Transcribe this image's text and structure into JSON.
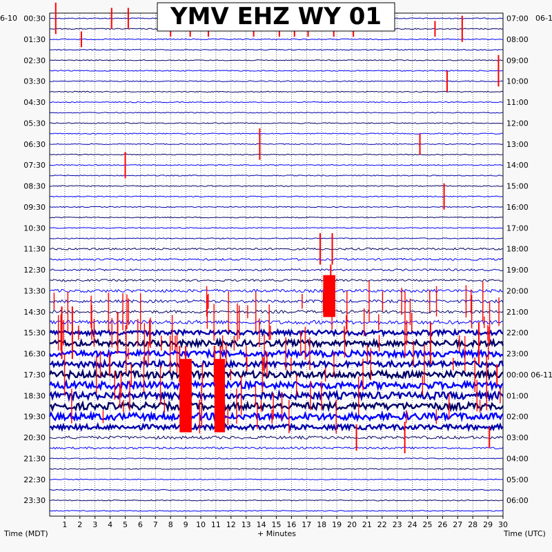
{
  "chart_data": {
    "type": "line",
    "title": "YMV EHZ WY 01",
    "xlabel": "+ Minutes",
    "left_axis_label": "Time (MDT)",
    "right_axis_label": "Time (UTC)",
    "left_date": "6-10",
    "right_date": "06-1",
    "mid_date_label": "06-11",
    "xlim": [
      0,
      30
    ],
    "x_ticks": [
      "1",
      "2",
      "3",
      "4",
      "5",
      "6",
      "7",
      "8",
      "9",
      "10",
      "11",
      "12",
      "13",
      "14",
      "15",
      "16",
      "17",
      "18",
      "19",
      "20",
      "21",
      "22",
      "23",
      "24",
      "25",
      "26",
      "27",
      "28",
      "29",
      "30"
    ],
    "left_ticks": [
      "00:30",
      "01:30",
      "02:30",
      "03:30",
      "04:30",
      "05:30",
      "06:30",
      "07:30",
      "08:30",
      "09:30",
      "10:30",
      "11:30",
      "12:30",
      "13:30",
      "14:30",
      "15:30",
      "16:30",
      "17:30",
      "18:30",
      "19:30",
      "20:30",
      "21:30",
      "22:30",
      "23:30"
    ],
    "right_ticks": [
      "07:00",
      "08:00",
      "09:00",
      "10:00",
      "11:00",
      "12:00",
      "13:00",
      "14:00",
      "15:00",
      "16:00",
      "17:00",
      "18:00",
      "19:00",
      "20:00",
      "21:00",
      "22:00",
      "23:00",
      "00:00",
      "01:00",
      "02:00",
      "03:00",
      "04:00",
      "05:00",
      "06:00"
    ],
    "series": [
      {
        "color": "#0000aa",
        "line_amplitude": [
          1,
          1,
          1,
          1,
          1,
          1,
          1,
          1,
          1,
          1,
          1,
          1,
          1,
          1,
          1,
          1,
          1,
          1,
          1,
          1,
          1,
          1,
          1,
          1,
          1,
          1,
          1,
          1,
          1,
          1,
          1,
          1,
          1,
          1,
          1,
          1,
          1,
          1,
          1,
          1,
          1,
          1,
          1,
          1,
          1,
          1,
          1,
          1,
          1,
          1,
          1,
          1
        ]
      },
      {
        "color": "#000066"
      },
      {
        "color": "#0000ff"
      },
      {
        "color": "#ff0000"
      }
    ],
    "rows": 48,
    "row_amplitude": [
      1,
      1,
      1,
      1,
      1,
      1,
      1,
      1,
      1,
      1,
      1,
      1,
      1,
      1,
      1,
      1,
      1,
      1,
      1,
      1,
      1,
      1,
      2,
      2,
      2,
      2,
      3,
      3,
      3,
      4,
      5,
      6,
      6,
      6,
      7,
      7,
      7,
      7,
      7,
      5,
      3,
      2,
      1,
      1,
      1,
      1,
      1,
      1
    ],
    "events": [
      {
        "minute": 0.4,
        "row": 0,
        "height": 3.0
      },
      {
        "minute": 2.1,
        "row": 2,
        "height": 1.5
      },
      {
        "minute": 4.1,
        "row": 0,
        "height": 2.0
      },
      {
        "minute": 5.2,
        "row": 0,
        "height": 2.0
      },
      {
        "minute": 8.0,
        "row": 1,
        "height": 1.5
      },
      {
        "minute": 9.3,
        "row": 1,
        "height": 1.5
      },
      {
        "minute": 10.5,
        "row": 1,
        "height": 1.5
      },
      {
        "minute": 13.5,
        "row": 1,
        "height": 1.5
      },
      {
        "minute": 15.2,
        "row": 1,
        "height": 1.5
      },
      {
        "minute": 16.2,
        "row": 1,
        "height": 1.5
      },
      {
        "minute": 17.1,
        "row": 1,
        "height": 1.5
      },
      {
        "minute": 18.8,
        "row": 1,
        "height": 1.5
      },
      {
        "minute": 20.1,
        "row": 1,
        "height": 1.5
      },
      {
        "minute": 25.5,
        "row": 1,
        "height": 1.5
      },
      {
        "minute": 27.3,
        "row": 1,
        "height": 2.5
      },
      {
        "minute": 26.3,
        "row": 6,
        "height": 2.0
      },
      {
        "minute": 29.7,
        "row": 5,
        "height": 3.0
      },
      {
        "minute": 24.5,
        "row": 12,
        "height": 2.0
      },
      {
        "minute": 13.9,
        "row": 12,
        "height": 3.0
      },
      {
        "minute": 5.0,
        "row": 14,
        "height": 2.5
      },
      {
        "minute": 26.1,
        "row": 17,
        "height": 2.5
      },
      {
        "minute": 17.9,
        "row": 22,
        "height": 3.0
      },
      {
        "minute": 18.7,
        "row": 22,
        "height": 3.0
      },
      {
        "minute": 0.8,
        "row": 30,
        "height": 5.0
      },
      {
        "minute": 1.5,
        "row": 30,
        "height": 5.0
      },
      {
        "minute": 4.5,
        "row": 30,
        "height": 4.0
      },
      {
        "minute": 8.6,
        "row": 33,
        "height": 3.5
      },
      {
        "minute": 9.0,
        "row": 33,
        "height": 3.5
      },
      {
        "minute": 10.9,
        "row": 33,
        "height": 3.5
      },
      {
        "minute": 11.3,
        "row": 33,
        "height": 3.5
      },
      {
        "minute": 18.6,
        "row": 26,
        "height": 5.0
      },
      {
        "minute": 25.2,
        "row": 31,
        "height": 4.0
      },
      {
        "minute": 28.4,
        "row": 31,
        "height": 4.0
      },
      {
        "minute": 29.6,
        "row": 34,
        "height": 2.0
      },
      {
        "minute": 20.3,
        "row": 40,
        "height": 2.5
      },
      {
        "minute": 23.5,
        "row": 40,
        "height": 3.0
      },
      {
        "minute": 29.1,
        "row": 40,
        "height": 2.0
      }
    ],
    "grid": true
  }
}
